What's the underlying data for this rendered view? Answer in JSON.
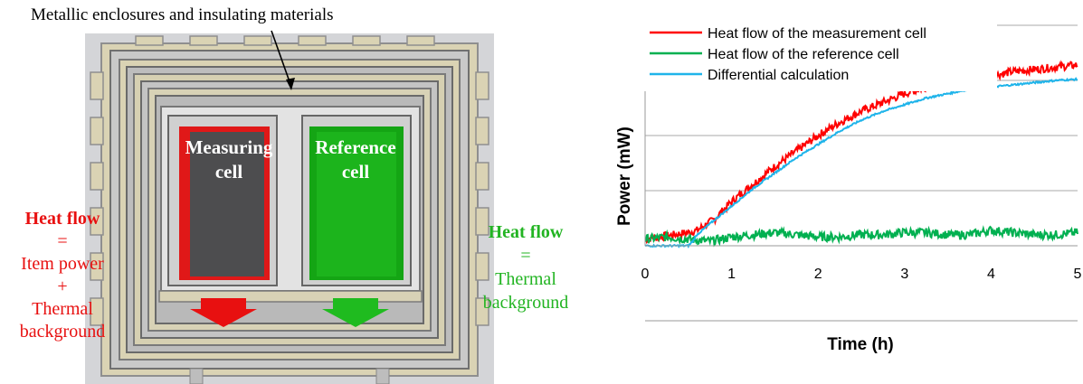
{
  "diagram": {
    "top_caption": "Metallic enclosures and insulating materials",
    "measuring_cell": {
      "line1": "Measuring",
      "line2": "cell"
    },
    "reference_cell": {
      "line1": "Reference",
      "line2": "cell"
    },
    "left_formula": {
      "title": "Heat flow",
      "eq": "=",
      "term1": "Item power",
      "plus": "+",
      "term2a": "Thermal",
      "term2b": "background"
    },
    "right_formula": {
      "title": "Heat flow",
      "eq": "=",
      "term1a": "Thermal",
      "term1b": "background"
    },
    "colors": {
      "red": "#e81010",
      "green": "#22b422"
    }
  },
  "chart_data": {
    "type": "line",
    "title": "",
    "xlabel": "Time (h)",
    "ylabel": "Power (mW)",
    "xlim": [
      0,
      5
    ],
    "x_ticks": [
      "0",
      "1",
      "2",
      "3",
      "4",
      "5"
    ],
    "y_ticks_labeled": false,
    "grid": "horizontal",
    "legend_position": "top-left",
    "series": [
      {
        "name": "Heat flow of the measurement cell",
        "color": "#ff0000",
        "x": [
          0,
          0.5,
          0.6,
          0.8,
          1.0,
          1.25,
          1.5,
          1.75,
          2.0,
          2.25,
          2.5,
          2.75,
          3.0,
          3.25,
          3.5,
          3.75,
          4.0,
          4.25,
          4.5,
          4.75,
          5.0
        ],
        "y": [
          0.03,
          0.06,
          0.07,
          0.12,
          0.2,
          0.28,
          0.36,
          0.43,
          0.5,
          0.56,
          0.61,
          0.65,
          0.69,
          0.72,
          0.74,
          0.76,
          0.77,
          0.79,
          0.8,
          0.81,
          0.82
        ]
      },
      {
        "name": "Heat flow of the reference cell",
        "color": "#00b050",
        "x": [
          0,
          0.25,
          0.5,
          0.75,
          1.0,
          1.25,
          1.5,
          1.75,
          2.0,
          2.25,
          2.5,
          2.75,
          3.0,
          3.25,
          3.5,
          3.75,
          4.0,
          4.25,
          4.5,
          4.75,
          5.0
        ],
        "y": [
          0.03,
          0.04,
          0.03,
          0.02,
          0.04,
          0.05,
          0.06,
          0.05,
          0.04,
          0.04,
          0.05,
          0.05,
          0.06,
          0.06,
          0.05,
          0.05,
          0.07,
          0.06,
          0.05,
          0.05,
          0.06
        ]
      },
      {
        "name": "Differential calculation",
        "color": "#1fb4ea",
        "x": [
          0,
          0.5,
          0.55,
          0.6,
          0.75,
          1.0,
          1.25,
          1.5,
          1.75,
          2.0,
          2.25,
          2.5,
          2.75,
          3.0,
          3.25,
          3.5,
          3.75,
          4.0,
          4.25,
          4.5,
          4.75,
          5.0
        ],
        "y": [
          0.0,
          0.0,
          0.02,
          0.05,
          0.1,
          0.18,
          0.26,
          0.33,
          0.4,
          0.46,
          0.52,
          0.57,
          0.61,
          0.64,
          0.67,
          0.69,
          0.71,
          0.72,
          0.73,
          0.74,
          0.75,
          0.755
        ]
      }
    ]
  }
}
